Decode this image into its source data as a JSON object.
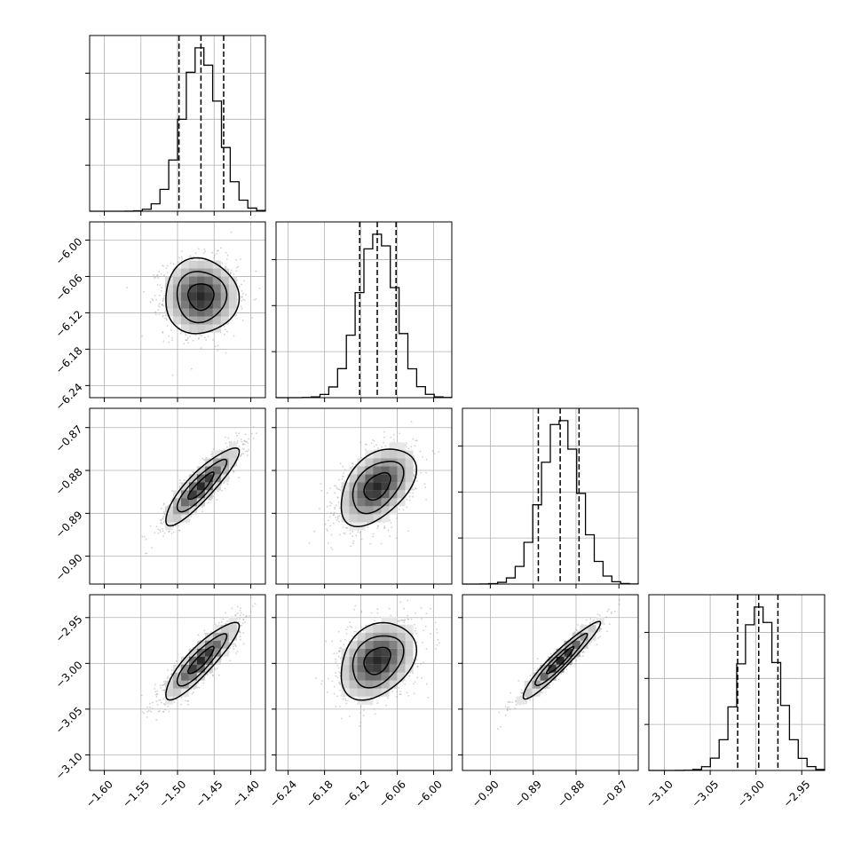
{
  "chart_data": {
    "type": "corner",
    "description": "",
    "parameters": [
      {
        "id": "p0",
        "range": [
          -1.62,
          -1.38
        ],
        "ticks": [
          -1.6,
          -1.55,
          -1.5,
          -1.45,
          -1.4
        ],
        "tick_labels": [
          "−1.60",
          "−1.55",
          "−1.50",
          "−1.45",
          "−1.40"
        ],
        "mean": -1.468,
        "sd": 0.025,
        "quantiles": [
          -1.498,
          -1.468,
          -1.437
        ]
      },
      {
        "id": "p1",
        "range": [
          -6.26,
          -5.97
        ],
        "ticks": [
          -6.24,
          -6.18,
          -6.12,
          -6.06,
          -6.0
        ],
        "tick_labels": [
          "−6.24",
          "−6.18",
          "−6.12",
          "−6.06",
          "−6.00"
        ],
        "mean": -6.093,
        "sd": 0.031,
        "quantiles": [
          -6.122,
          -6.093,
          -6.062
        ]
      },
      {
        "id": "p2",
        "range": [
          -0.9065,
          -0.8655
        ],
        "ticks": [
          -0.9,
          -0.89,
          -0.88,
          -0.87
        ],
        "tick_labels": [
          "−0.90",
          "−0.89",
          "−0.88",
          "−0.87"
        ],
        "mean": -0.8837,
        "sd": 0.0045,
        "quantiles": [
          -0.8888,
          -0.8837,
          -0.8793
        ]
      },
      {
        "id": "p3",
        "range": [
          -3.117,
          -2.925
        ],
        "ticks": [
          -3.1,
          -3.05,
          -3.0,
          -2.95
        ],
        "tick_labels": [
          "−3.10",
          "−3.05",
          "−3.00",
          "−2.95"
        ],
        "mean": -2.997,
        "sd": 0.021,
        "quantiles": [
          -3.02,
          -2.997,
          -2.976
        ]
      }
    ],
    "correlations": [
      {
        "x": "p0",
        "y": "p1",
        "rho": 0.0
      },
      {
        "x": "p0",
        "y": "p2",
        "rho": 0.88
      },
      {
        "x": "p0",
        "y": "p3",
        "rho": 0.88
      },
      {
        "x": "p1",
        "y": "p2",
        "rho": 0.45
      },
      {
        "x": "p1",
        "y": "p3",
        "rho": 0.3
      },
      {
        "x": "p2",
        "y": "p3",
        "rho": 0.95
      }
    ],
    "histograms": {
      "bins": 20,
      "grid": true,
      "quantile_line_style": "dashed"
    },
    "contours": {
      "levels": 3,
      "colors": "black",
      "fill": "grayscale"
    }
  }
}
